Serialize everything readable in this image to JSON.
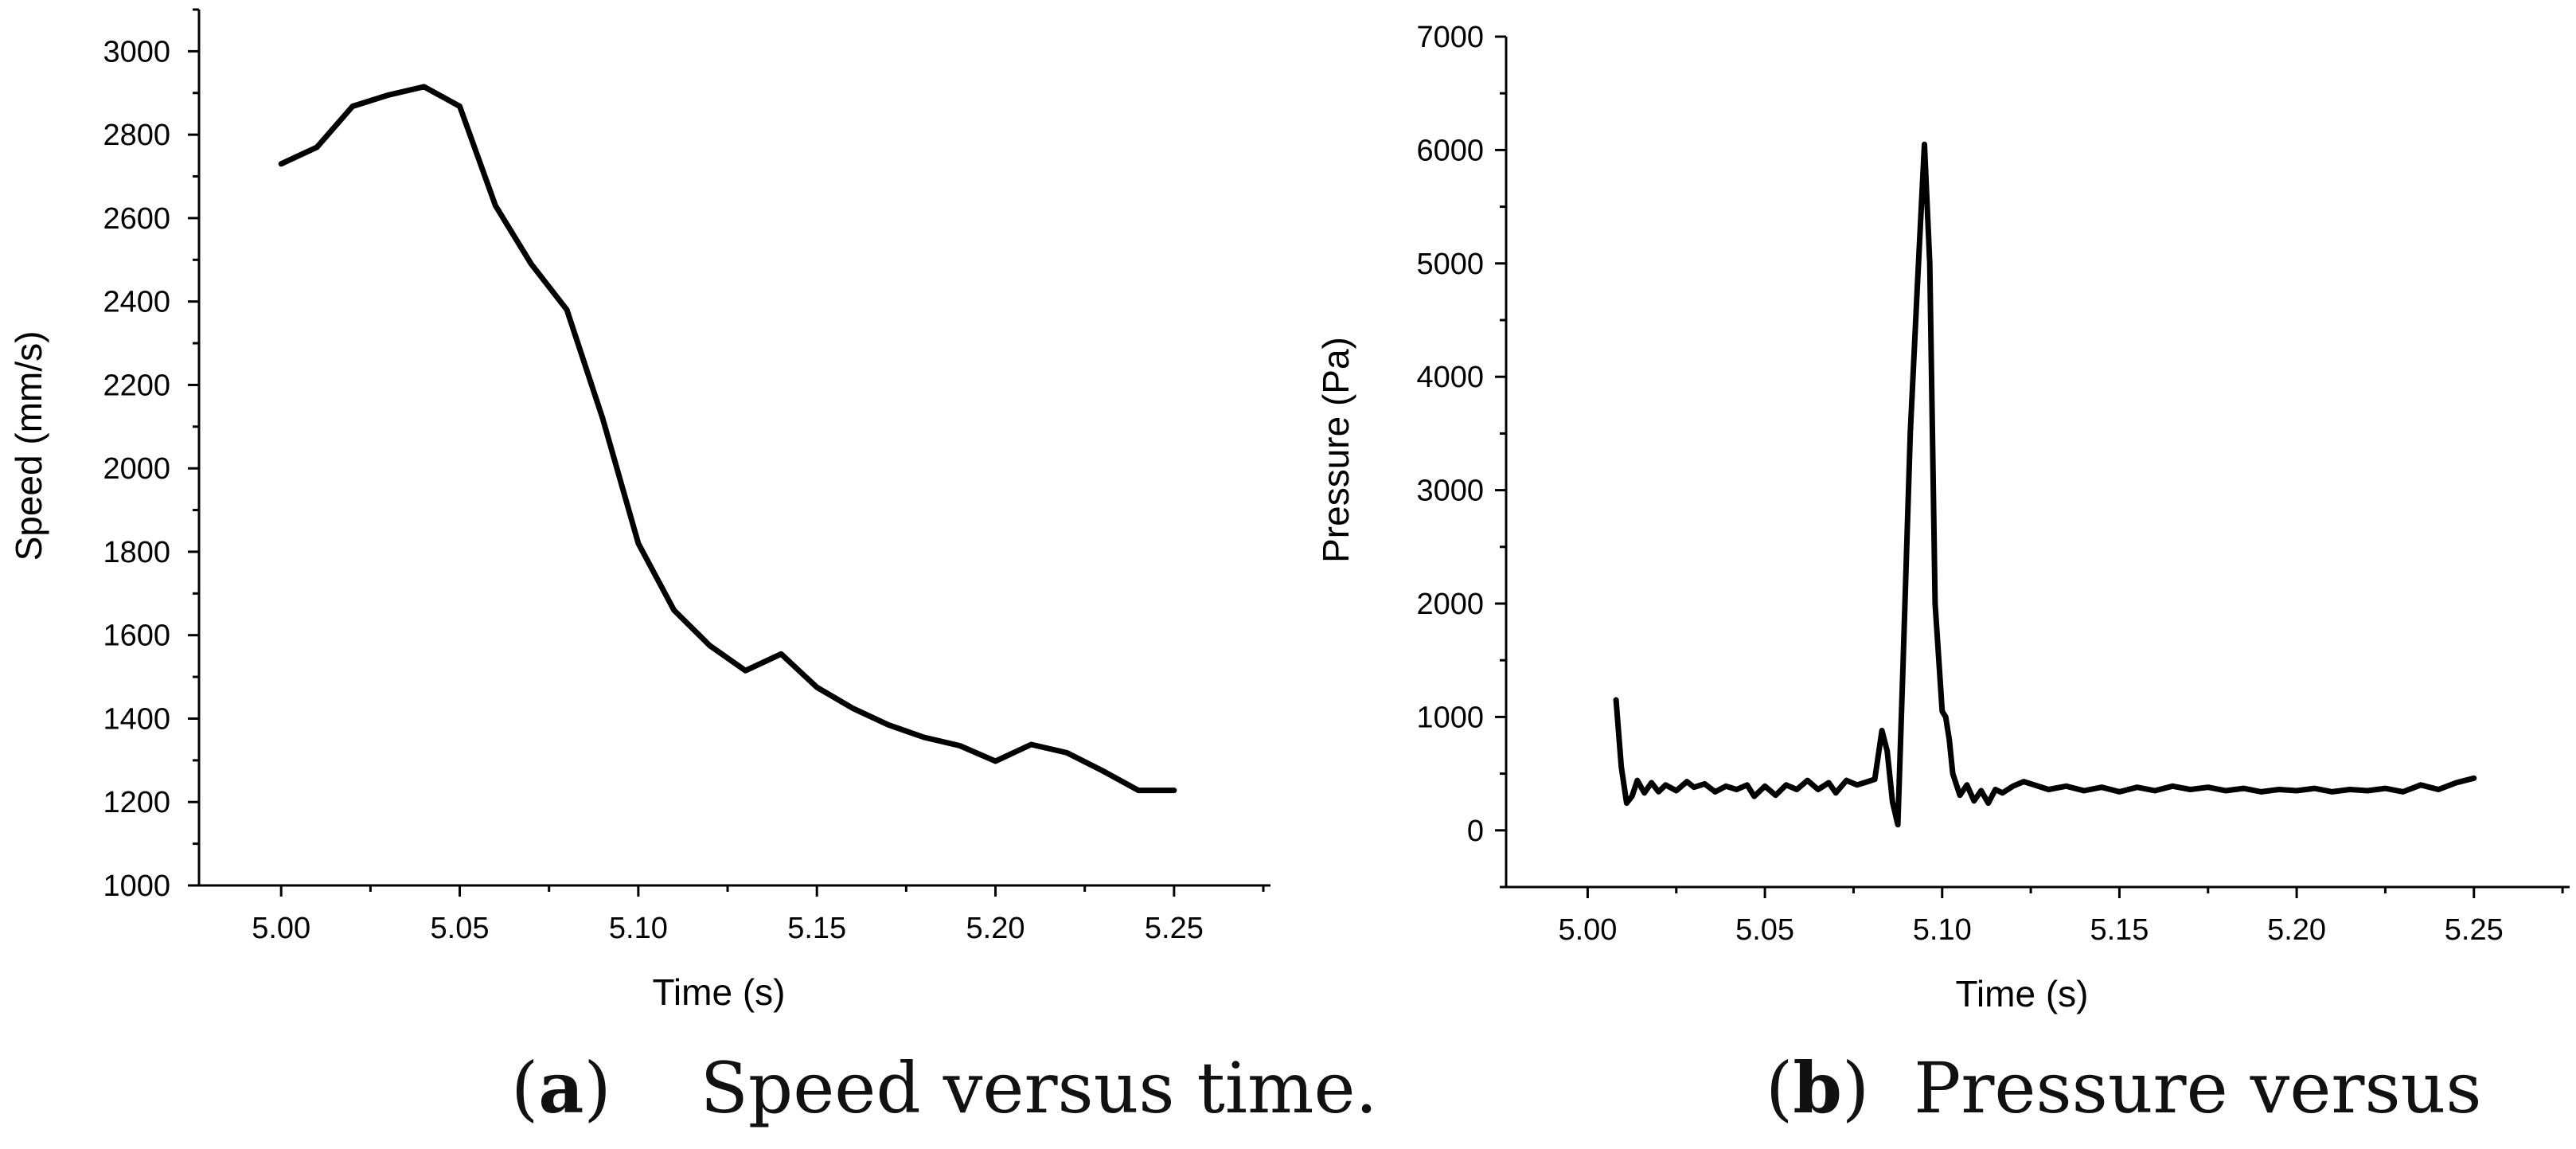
{
  "chart_data": [
    {
      "type": "line",
      "title": "",
      "xlabel": "Time (s)",
      "ylabel": "Speed (mm/s)",
      "xlim": [
        4.977,
        5.277
      ],
      "ylim": [
        1000,
        3100
      ],
      "xticks": [
        "5.00",
        "5.05",
        "5.10",
        "5.15",
        "5.20",
        "5.25"
      ],
      "yticks": [
        "1000",
        "1200",
        "1400",
        "1600",
        "1800",
        "2000",
        "2200",
        "2400",
        "2600",
        "2800",
        "3000"
      ],
      "series": [
        {
          "name": "Speed",
          "x": [
            5.0,
            5.01,
            5.02,
            5.03,
            5.04,
            5.05,
            5.06,
            5.07,
            5.08,
            5.09,
            5.1,
            5.11,
            5.12,
            5.13,
            5.14,
            5.15,
            5.16,
            5.17,
            5.18,
            5.19,
            5.2,
            5.21,
            5.22,
            5.23,
            5.24,
            5.25
          ],
          "y": [
            2730,
            2770,
            2868,
            2895,
            2915,
            2868,
            2630,
            2490,
            2380,
            2120,
            1820,
            1660,
            1575,
            1515,
            1555,
            1475,
            1425,
            1385,
            1355,
            1335,
            1298,
            1338,
            1318,
            1275,
            1228,
            1228
          ]
        }
      ],
      "caption_label": "a",
      "caption_text": "Speed versus time."
    },
    {
      "type": "line",
      "title": "",
      "xlabel": "Time (s)",
      "ylabel": "Pressure (Pa)",
      "xlim": [
        4.977,
        5.277
      ],
      "ylim": [
        -500,
        7000
      ],
      "xticks": [
        "5.00",
        "5.05",
        "5.10",
        "5.15",
        "5.20",
        "5.25"
      ],
      "yticks": [
        "0",
        "1000",
        "2000",
        "3000",
        "4000",
        "5000",
        "6000",
        "7000"
      ],
      "series": [
        {
          "name": "Pressure",
          "x": [
            5.008,
            5.0095,
            5.011,
            5.0125,
            5.014,
            5.016,
            5.018,
            5.02,
            5.022,
            5.025,
            5.028,
            5.03,
            5.033,
            5.036,
            5.039,
            5.042,
            5.045,
            5.047,
            5.05,
            5.053,
            5.056,
            5.059,
            5.062,
            5.065,
            5.068,
            5.07,
            5.073,
            5.076,
            5.079,
            5.081,
            5.083,
            5.0845,
            5.086,
            5.0875,
            5.089,
            5.091,
            5.093,
            5.095,
            5.0965,
            5.098,
            5.1,
            5.101,
            5.102,
            5.103,
            5.105,
            5.107,
            5.109,
            5.111,
            5.113,
            5.115,
            5.117,
            5.12,
            5.123,
            5.13,
            5.135,
            5.14,
            5.145,
            5.15,
            5.155,
            5.16,
            5.165,
            5.17,
            5.175,
            5.18,
            5.185,
            5.19,
            5.195,
            5.2,
            5.205,
            5.21,
            5.215,
            5.22,
            5.225,
            5.23,
            5.235,
            5.24,
            5.245,
            5.25
          ],
          "y": [
            1150,
            560,
            240,
            300,
            440,
            330,
            420,
            340,
            400,
            350,
            430,
            380,
            410,
            340,
            390,
            360,
            400,
            300,
            390,
            310,
            400,
            360,
            440,
            360,
            420,
            330,
            440,
            400,
            430,
            450,
            880,
            700,
            250,
            50,
            1500,
            3500,
            4800,
            6050,
            5000,
            2000,
            1050,
            1000,
            800,
            500,
            310,
            400,
            260,
            350,
            240,
            360,
            330,
            390,
            430,
            360,
            390,
            350,
            380,
            340,
            380,
            350,
            390,
            360,
            380,
            350,
            370,
            340,
            360,
            350,
            370,
            340,
            360,
            350,
            370,
            340,
            400,
            360,
            420,
            460
          ]
        }
      ],
      "caption_label": "b",
      "caption_text": "Pressure versus"
    }
  ]
}
